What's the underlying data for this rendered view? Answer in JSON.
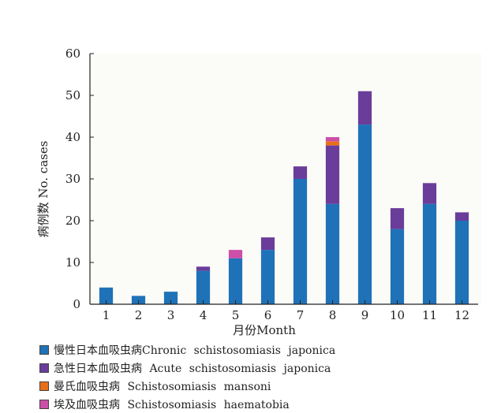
{
  "chart_data": {
    "type": "bar",
    "stacked": true,
    "categories": [
      "1",
      "2",
      "3",
      "4",
      "5",
      "6",
      "7",
      "8",
      "9",
      "10",
      "11",
      "12"
    ],
    "series": [
      {
        "name": "慢性日本血吸虫病Chronic schistosomiasis japonica",
        "color": "#1f72b8",
        "values": [
          4,
          2,
          3,
          8,
          11,
          13,
          30,
          24,
          43,
          18,
          24,
          20
        ]
      },
      {
        "name": "急性日本血吸虫病 Acute schistosomiasis japonica",
        "color": "#6a3d9a",
        "values": [
          0,
          0,
          0,
          1,
          0,
          3,
          3,
          14,
          8,
          5,
          5,
          2
        ]
      },
      {
        "name": "曼氏血吸虫病 Schistosomiasis mansoni",
        "color": "#e8701a",
        "values": [
          0,
          0,
          0,
          0,
          0,
          0,
          0,
          1,
          0,
          0,
          0,
          0
        ]
      },
      {
        "name": "埃及血吸虫病 Schistosomiasis haematobia",
        "color": "#cc4fa8",
        "values": [
          0,
          0,
          0,
          0,
          2,
          0,
          0,
          1,
          0,
          0,
          0,
          0
        ]
      }
    ],
    "yticks": [
      0,
      10,
      20,
      30,
      40,
      50,
      60
    ],
    "ylim": [
      0,
      60
    ],
    "xlabel": "月份Month",
    "ylabel": "病例数  No. cases",
    "legend_position": "bottom-left"
  }
}
